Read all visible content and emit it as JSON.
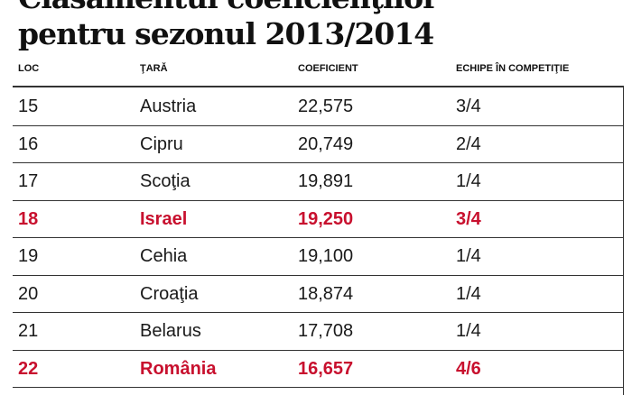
{
  "header": {
    "title_lines": [
      "Clasamentul coeficienţilor",
      "pentru sezonul 2013/2014"
    ]
  },
  "table": {
    "columns": [
      "LOC",
      "ŢARĂ",
      "COEFICIENT",
      "ECHIPE ÎN COMPETIŢIE"
    ],
    "rows": [
      {
        "cells": [
          "15",
          "Austria",
          "22,575",
          "3/4"
        ],
        "color": "#1a1a1a"
      },
      {
        "cells": [
          "16",
          "Cipru",
          "20,749",
          "2/4"
        ],
        "color": "#1a1a1a"
      },
      {
        "cells": [
          "17",
          "Scoţia",
          "19,891",
          "1/4"
        ],
        "color": "#1a1a1a"
      },
      {
        "cells": [
          "18",
          "Israel",
          "19,250",
          "3/4"
        ],
        "color": "#c8102e"
      },
      {
        "cells": [
          "19",
          "Cehia",
          "19,100",
          "1/4"
        ],
        "color": "#1a1a1a"
      },
      {
        "cells": [
          "20",
          "Croaţia",
          "18,874",
          "1/4"
        ],
        "color": "#1a1a1a"
      },
      {
        "cells": [
          "21",
          "Belarus",
          "17,708",
          "1/4"
        ],
        "color": "#1a1a1a"
      },
      {
        "cells": [
          "22",
          "România",
          "16,657",
          "4/6"
        ],
        "color": "#c8102e"
      }
    ]
  }
}
